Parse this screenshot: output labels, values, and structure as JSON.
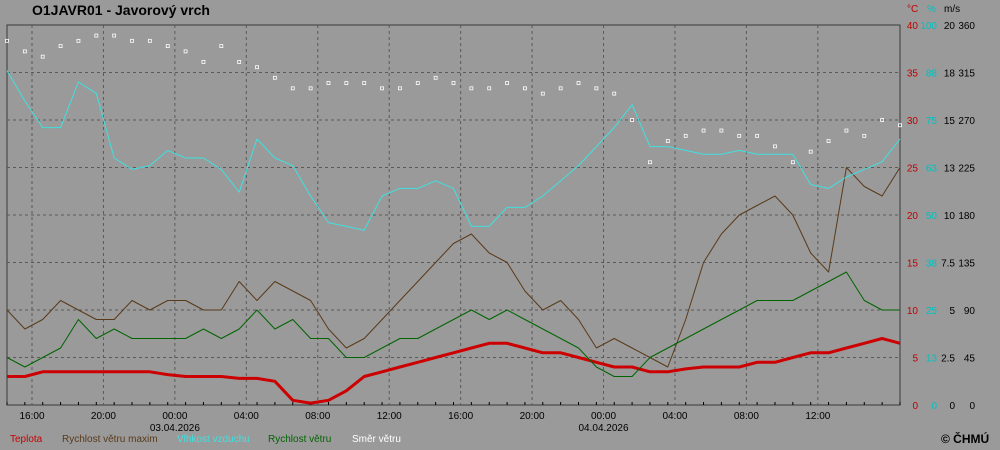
{
  "title": "O1JAVR01 - Javorový vrch",
  "units": {
    "temperature": "°C",
    "humidity": "%",
    "speed": "m/s"
  },
  "copyright": "© ČHMÚ",
  "colors": {
    "background": "#9a9a9a",
    "grid": "#5a5a5a",
    "temperature": "#cc0000",
    "gust": "#5a3a1a",
    "humidity": "#40e0e0",
    "speed": "#006400",
    "direction": "#ffffff"
  },
  "chart_data": {
    "type": "line",
    "title": "O1JAVR01 - Javorový vrch",
    "grid": true,
    "x_ticks": [
      "16:00",
      "20:00",
      "00:00",
      "04:00",
      "08:00",
      "12:00",
      "16:00",
      "20:00",
      "00:00",
      "04:00",
      "08:00",
      "12:00"
    ],
    "date_labels": [
      "03.04.2026",
      "04.04.2026"
    ],
    "y_axes": [
      {
        "name": "temperature",
        "unit": "°C",
        "range": [
          0,
          40
        ],
        "ticks": [
          "0",
          "5",
          "10",
          "15",
          "20",
          "25",
          "30",
          "35",
          "40"
        ]
      },
      {
        "name": "humidity",
        "unit": "%",
        "range": [
          0,
          100
        ],
        "ticks": [
          "0",
          "13",
          "25",
          "38",
          "50",
          "63",
          "75",
          "88",
          "100"
        ]
      },
      {
        "name": "speed",
        "unit": "m/s",
        "range": [
          0,
          20
        ],
        "ticks": [
          "0",
          "2.5",
          "5",
          "7.5",
          "10",
          "13",
          "15",
          "18",
          "20"
        ]
      },
      {
        "name": "direction",
        "unit": "",
        "range": [
          0,
          360
        ],
        "ticks": [
          "0",
          "45",
          "90",
          "135",
          "180",
          "225",
          "270",
          "315",
          "360"
        ]
      }
    ],
    "time_hours": [
      0,
      1,
      2,
      3,
      4,
      5,
      6,
      7,
      8,
      9,
      10,
      11,
      12,
      13,
      14,
      15,
      16,
      17,
      18,
      19,
      20,
      21,
      22,
      23,
      24,
      25,
      26,
      27,
      28,
      29,
      30,
      31,
      32,
      33,
      34,
      35,
      36,
      37,
      38,
      39,
      40,
      41,
      42,
      43,
      44,
      45,
      46,
      47,
      48,
      49,
      50
    ],
    "series": [
      {
        "name": "Teplota",
        "axis": "temperature",
        "values": [
          3,
          3,
          3.5,
          3.5,
          3.5,
          3.5,
          3.5,
          3.5,
          3.5,
          3.2,
          3,
          3,
          3,
          2.8,
          2.8,
          2.5,
          0.5,
          0.2,
          0.5,
          1.5,
          3,
          3.5,
          4,
          4.5,
          5,
          5.5,
          6,
          6.5,
          6.5,
          6,
          5.5,
          5.5,
          5,
          4.5,
          4,
          4,
          3.5,
          3.5,
          3.8,
          4,
          4,
          4,
          4.5,
          4.5,
          5,
          5.5,
          5.5,
          6,
          6.5,
          7,
          6.5
        ]
      },
      {
        "name": "Rychlost větru maxim",
        "axis": "temperature",
        "values": [
          10,
          8,
          9,
          11,
          10,
          9,
          9,
          11,
          10,
          11,
          11,
          10,
          10,
          13,
          11,
          13,
          12,
          11,
          8,
          6,
          7,
          9,
          11,
          13,
          15,
          17,
          18,
          16,
          15,
          12,
          10,
          11,
          9,
          6,
          7,
          6,
          5,
          4,
          9,
          15,
          18,
          20,
          21,
          22,
          20,
          16,
          14,
          25,
          23,
          22,
          25
        ]
      },
      {
        "name": "Vlhkost vzduchu",
        "axis": "humidity",
        "values": [
          88,
          80,
          73,
          73,
          85,
          82,
          65,
          62,
          63,
          67,
          65,
          65,
          62,
          56,
          70,
          65,
          63,
          55,
          48,
          47,
          46,
          55,
          57,
          57,
          59,
          57,
          47,
          47,
          52,
          52,
          55,
          59,
          63,
          68,
          73,
          79,
          68,
          68,
          67,
          66,
          66,
          67,
          66,
          66,
          66,
          58,
          57,
          60,
          62,
          64,
          70
        ]
      },
      {
        "name": "Rychlost větru",
        "axis": "speed",
        "values": [
          2.5,
          2,
          2.5,
          3,
          4.5,
          3.5,
          4,
          3.5,
          3.5,
          3.5,
          3.5,
          4,
          3.5,
          4,
          5,
          4,
          4.5,
          3.5,
          3.5,
          2.5,
          2.5,
          3,
          3.5,
          3.5,
          4,
          4.5,
          5,
          4.5,
          5,
          4.5,
          4,
          3.5,
          3,
          2,
          1.5,
          1.5,
          2.5,
          3,
          3.5,
          4,
          4.5,
          5,
          5.5,
          5.5,
          5.5,
          6,
          6.5,
          7,
          5.5,
          5,
          5
        ]
      },
      {
        "name": "Směr větru",
        "axis": "direction",
        "style": "points",
        "values": [
          345,
          335,
          330,
          340,
          345,
          350,
          350,
          345,
          345,
          340,
          335,
          325,
          340,
          325,
          320,
          310,
          300,
          300,
          305,
          305,
          305,
          300,
          300,
          305,
          310,
          305,
          300,
          300,
          305,
          300,
          295,
          300,
          305,
          300,
          295,
          270,
          230,
          250,
          255,
          260,
          260,
          255,
          255,
          245,
          230,
          240,
          250,
          260,
          255,
          270,
          265
        ]
      }
    ]
  }
}
